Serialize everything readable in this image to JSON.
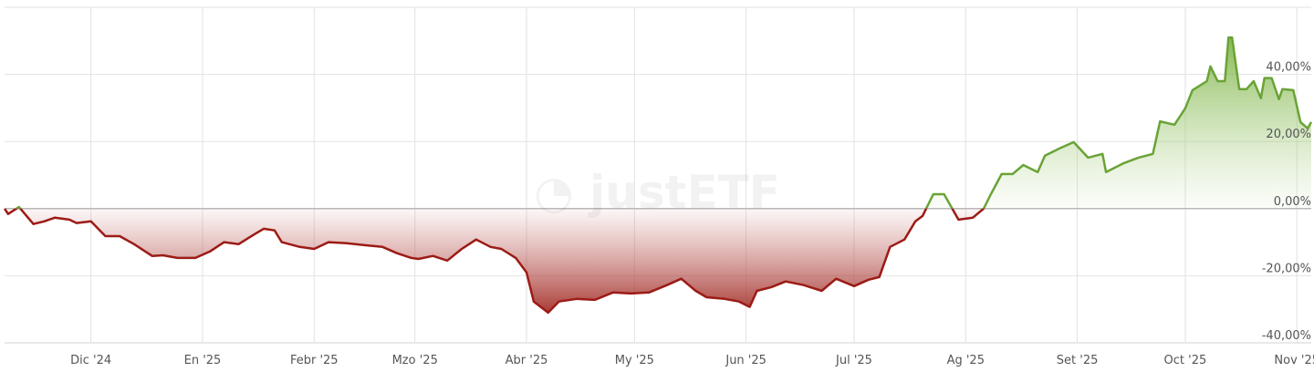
{
  "watermark": "justETF",
  "colors": {
    "positive": "#6aa336",
    "negative": "#9c1b16",
    "positive_fill": "#8bbf55",
    "negative_fill": "#a8302a",
    "grid": "#e2e2e2",
    "zero_line": "#b8b8b8",
    "tick_text": "#555555"
  },
  "chart_data": {
    "type": "area",
    "title": "",
    "xlabel": "",
    "ylabel": "",
    "xlim": [
      "2024-11-07",
      "2025-11-05"
    ],
    "ylim": [
      -40,
      60
    ],
    "grid": true,
    "y_axis_side": "right",
    "x_ticks": [
      {
        "date": "2024-12-01",
        "label": "Dic '24"
      },
      {
        "date": "2025-01-01",
        "label": "En '25"
      },
      {
        "date": "2025-02-01",
        "label": "Febr '25"
      },
      {
        "date": "2025-03-01",
        "label": "Mzo '25"
      },
      {
        "date": "2025-04-01",
        "label": "Abr '25"
      },
      {
        "date": "2025-05-01",
        "label": "My '25"
      },
      {
        "date": "2025-06-01",
        "label": "Jun '25"
      },
      {
        "date": "2025-07-01",
        "label": "Jul '25"
      },
      {
        "date": "2025-08-01",
        "label": "Ag '25"
      },
      {
        "date": "2025-09-01",
        "label": "Set '25"
      },
      {
        "date": "2025-10-01",
        "label": "Oct '25"
      },
      {
        "date": "2025-11-01",
        "label": "Nov '25"
      }
    ],
    "y_ticks": [
      {
        "value": 40,
        "label": "40,00%"
      },
      {
        "value": 20,
        "label": "20,00%"
      },
      {
        "value": 0,
        "label": "0,00%"
      },
      {
        "value": -20,
        "label": "-20,00%"
      },
      {
        "value": -40,
        "label": "-40,00%"
      }
    ],
    "points": [
      [
        "2024-11-07",
        0
      ],
      [
        "2024-11-08",
        -1.6
      ],
      [
        "2024-11-11",
        0.5
      ],
      [
        "2024-11-15",
        -4.6
      ],
      [
        "2024-11-18",
        -3.8
      ],
      [
        "2024-11-21",
        -2.7
      ],
      [
        "2024-11-25",
        -3.3
      ],
      [
        "2024-11-27",
        -4.3
      ],
      [
        "2024-12-01",
        -3.8
      ],
      [
        "2024-12-05",
        -8.2
      ],
      [
        "2024-12-09",
        -8.2
      ],
      [
        "2024-12-13",
        -10.6
      ],
      [
        "2024-12-18",
        -14.1
      ],
      [
        "2024-12-21",
        -13.9
      ],
      [
        "2024-12-25",
        -14.7
      ],
      [
        "2024-12-30",
        -14.7
      ],
      [
        "2025-01-03",
        -12.8
      ],
      [
        "2025-01-07",
        -10
      ],
      [
        "2025-01-11",
        -10.6
      ],
      [
        "2025-01-15",
        -7.9
      ],
      [
        "2025-01-18",
        -6
      ],
      [
        "2025-01-21",
        -6.5
      ],
      [
        "2025-01-23",
        -10
      ],
      [
        "2025-01-28",
        -11.4
      ],
      [
        "2025-02-01",
        -12
      ],
      [
        "2025-02-05",
        -10
      ],
      [
        "2025-02-10",
        -10.3
      ],
      [
        "2025-02-15",
        -10.9
      ],
      [
        "2025-02-20",
        -11.4
      ],
      [
        "2025-02-24",
        -13.3
      ],
      [
        "2025-02-28",
        -14.7
      ],
      [
        "2025-03-02",
        -15
      ],
      [
        "2025-03-06",
        -14.1
      ],
      [
        "2025-03-10",
        -15.5
      ],
      [
        "2025-03-14",
        -12
      ],
      [
        "2025-03-18",
        -9.2
      ],
      [
        "2025-03-22",
        -11.4
      ],
      [
        "2025-03-25",
        -12
      ],
      [
        "2025-03-29",
        -14.7
      ],
      [
        "2025-04-01",
        -19
      ],
      [
        "2025-04-03",
        -27.7
      ],
      [
        "2025-04-07",
        -31
      ],
      [
        "2025-04-10",
        -27.7
      ],
      [
        "2025-04-15",
        -26.9
      ],
      [
        "2025-04-20",
        -27.2
      ],
      [
        "2025-04-25",
        -25
      ],
      [
        "2025-04-30",
        -25.3
      ],
      [
        "2025-05-05",
        -25
      ],
      [
        "2025-05-10",
        -22.8
      ],
      [
        "2025-05-14",
        -20.9
      ],
      [
        "2025-05-18",
        -24.5
      ],
      [
        "2025-05-21",
        -26.4
      ],
      [
        "2025-05-26",
        -26.9
      ],
      [
        "2025-05-30",
        -27.7
      ],
      [
        "2025-06-02",
        -29.3
      ],
      [
        "2025-06-04",
        -24.5
      ],
      [
        "2025-06-08",
        -23.4
      ],
      [
        "2025-06-12",
        -21.7
      ],
      [
        "2025-06-17",
        -22.8
      ],
      [
        "2025-06-22",
        -24.5
      ],
      [
        "2025-06-26",
        -20.9
      ],
      [
        "2025-07-01",
        -23.1
      ],
      [
        "2025-07-05",
        -21.2
      ],
      [
        "2025-07-08",
        -20.4
      ],
      [
        "2025-07-11",
        -11.4
      ],
      [
        "2025-07-15",
        -9.2
      ],
      [
        "2025-07-18",
        -3.8
      ],
      [
        "2025-07-20",
        -2.2
      ],
      [
        "2025-07-23",
        4.3
      ],
      [
        "2025-07-26",
        4.3
      ],
      [
        "2025-07-30",
        -3.3
      ],
      [
        "2025-08-03",
        -2.7
      ],
      [
        "2025-08-06",
        0
      ],
      [
        "2025-08-08",
        4.3
      ],
      [
        "2025-08-11",
        10.3
      ],
      [
        "2025-08-14",
        10.3
      ],
      [
        "2025-08-17",
        13
      ],
      [
        "2025-08-21",
        10.9
      ],
      [
        "2025-08-23",
        15.8
      ],
      [
        "2025-08-27",
        17.9
      ],
      [
        "2025-08-31",
        19.8
      ],
      [
        "2025-09-04",
        15.2
      ],
      [
        "2025-09-08",
        16.3
      ],
      [
        "2025-09-09",
        10.9
      ],
      [
        "2025-09-14",
        13.6
      ],
      [
        "2025-09-18",
        15.2
      ],
      [
        "2025-09-22",
        16.3
      ],
      [
        "2025-09-24",
        26
      ],
      [
        "2025-09-28",
        25
      ],
      [
        "2025-10-01",
        29.9
      ],
      [
        "2025-10-03",
        35.3
      ],
      [
        "2025-10-07",
        38
      ],
      [
        "2025-10-08",
        42.4
      ],
      [
        "2025-10-10",
        38
      ],
      [
        "2025-10-12",
        38
      ],
      [
        "2025-10-13",
        51
      ],
      [
        "2025-10-14",
        51
      ],
      [
        "2025-10-16",
        35.6
      ],
      [
        "2025-10-18",
        35.6
      ],
      [
        "2025-10-20",
        38
      ],
      [
        "2025-10-22",
        32.9
      ],
      [
        "2025-10-23",
        38.9
      ],
      [
        "2025-10-25",
        38.9
      ],
      [
        "2025-10-27",
        32.6
      ],
      [
        "2025-10-28",
        35.6
      ],
      [
        "2025-10-31",
        35.3
      ],
      [
        "2025-11-02",
        25.8
      ],
      [
        "2025-11-04",
        23.9
      ],
      [
        "2025-11-05",
        25.8
      ]
    ]
  }
}
